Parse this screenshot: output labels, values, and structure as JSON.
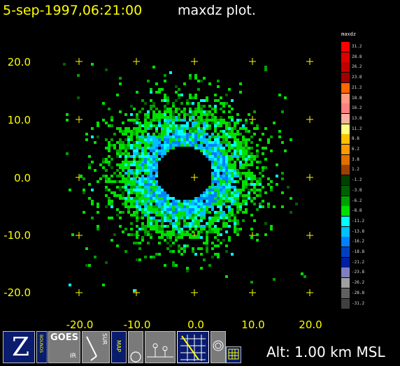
{
  "header": {
    "datetime": "5-sep-1997,06:21:00",
    "plot_name": "maxdz plot."
  },
  "axes": {
    "y_ticks": [
      "20.0",
      "10.0",
      "0.0",
      "-10.0",
      "-20.0"
    ],
    "x_ticks": [
      "-20.0",
      "-10.0",
      "0.0",
      "10.0",
      "20.0"
    ],
    "tick_color": "#ffff00"
  },
  "colorbar": {
    "title": "maxdz",
    "levels": [
      {
        "label": "31.2",
        "color": "#ff0000"
      },
      {
        "label": "28.8",
        "color": "#dd0000"
      },
      {
        "label": "26.2",
        "color": "#c00000"
      },
      {
        "label": "23.8",
        "color": "#a00000"
      },
      {
        "label": "21.2",
        "color": "#ff6600"
      },
      {
        "label": "18.8",
        "color": "#ff9a80"
      },
      {
        "label": "16.2",
        "color": "#ff8080"
      },
      {
        "label": "13.8",
        "color": "#ffb0a0"
      },
      {
        "label": "11.2",
        "color": "#ffff80"
      },
      {
        "label": "8.8",
        "color": "#ffc000"
      },
      {
        "label": "6.2",
        "color": "#ff9900"
      },
      {
        "label": "3.8",
        "color": "#e07000"
      },
      {
        "label": "1.2",
        "color": "#a04000"
      },
      {
        "label": "-1.2",
        "color": "#004000"
      },
      {
        "label": "-3.8",
        "color": "#006000"
      },
      {
        "label": "-6.2",
        "color": "#00a000"
      },
      {
        "label": "-8.8",
        "color": "#00e000"
      },
      {
        "label": "-11.2",
        "color": "#00ffff"
      },
      {
        "label": "-13.8",
        "color": "#00c0ff"
      },
      {
        "label": "-16.2",
        "color": "#0080ff"
      },
      {
        "label": "-18.8",
        "color": "#0040c0"
      },
      {
        "label": "-21.2",
        "color": "#0020a0"
      },
      {
        "label": "-23.8",
        "color": "#8080c0"
      },
      {
        "label": "-26.2",
        "color": "#a0a0a0"
      },
      {
        "label": "-28.8",
        "color": "#606060"
      },
      {
        "label": "-31.2",
        "color": "#404040"
      }
    ]
  },
  "toolbar": {
    "z_label": "Z",
    "bounds_label": "BOUNDS",
    "goes_label": "GOES",
    "goes_sub": "IR",
    "sur_label": "SUR",
    "map_label": "MAP"
  },
  "status": {
    "altitude": "Alt: 1.00 km MSL"
  }
}
